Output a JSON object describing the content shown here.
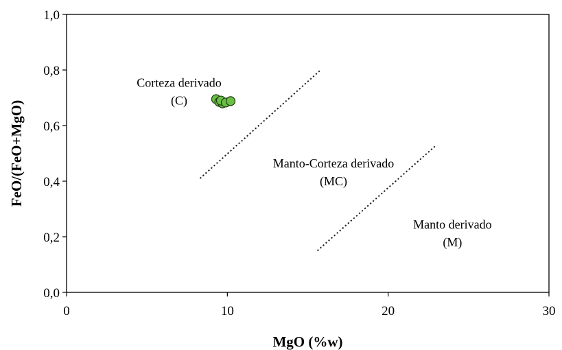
{
  "chart_data": {
    "type": "scatter",
    "xlabel": "MgO (%w)",
    "ylabel": "FeO/(FeO+MgO)",
    "xlim": [
      0,
      30
    ],
    "ylim": [
      0,
      1.0
    ],
    "xticks": [
      0,
      10,
      20,
      30
    ],
    "yticks": [
      0.0,
      0.2,
      0.4,
      0.6,
      0.8,
      1.0
    ],
    "xtick_labels": [
      "0",
      "10",
      "20",
      "30"
    ],
    "ytick_labels": [
      "0,0",
      "0,2",
      "0,4",
      "0,6",
      "0,8",
      "1,0"
    ],
    "grid": false,
    "marker_color": "#6abf45",
    "marker_edge": "#1e3a12",
    "series": [
      {
        "points": [
          {
            "x": 9.3,
            "y": 0.695
          },
          {
            "x": 9.5,
            "y": 0.685
          },
          {
            "x": 9.7,
            "y": 0.68
          },
          {
            "x": 9.6,
            "y": 0.69
          },
          {
            "x": 9.9,
            "y": 0.683
          },
          {
            "x": 10.2,
            "y": 0.688
          }
        ]
      }
    ],
    "boundaries": [
      {
        "x": [
          8.3,
          15.8
        ],
        "y": [
          0.41,
          0.8
        ]
      },
      {
        "x": [
          15.6,
          23.0
        ],
        "y": [
          0.15,
          0.53
        ]
      }
    ],
    "region_labels": [
      {
        "lines": [
          "Corteza derivado",
          "(C)"
        ],
        "x": 7.0,
        "y": 0.74
      },
      {
        "lines": [
          "Manto-Corteza derivado",
          "(MC)"
        ],
        "x": 16.6,
        "y": 0.45
      },
      {
        "lines": [
          "Manto derivado",
          "(M)"
        ],
        "x": 24.0,
        "y": 0.23
      }
    ]
  }
}
